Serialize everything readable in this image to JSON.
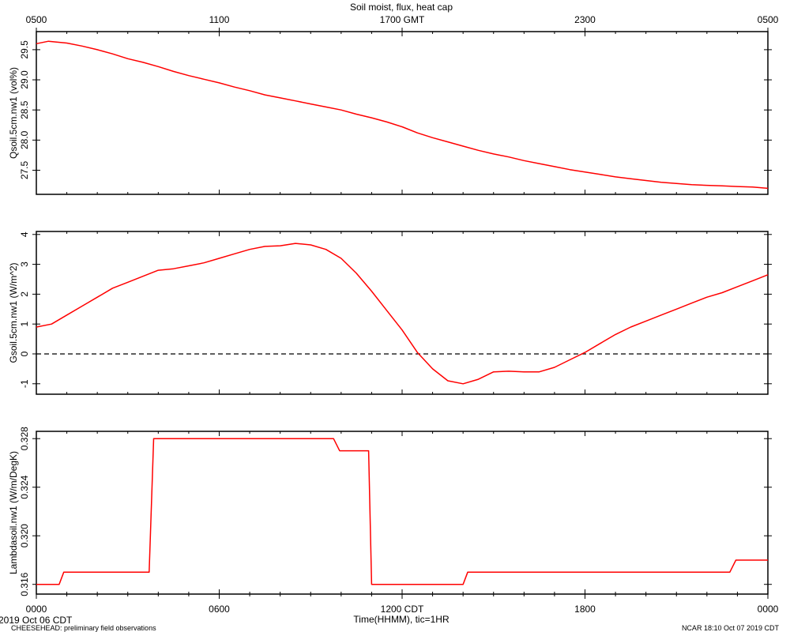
{
  "title": "Soil moist, flux, heat cap",
  "top_axis": {
    "labels": [
      "0500",
      "1100",
      "1700 GMT",
      "2300",
      "0500"
    ]
  },
  "bottom_axis": {
    "labels": [
      "0000",
      "0600",
      "1200 CDT",
      "1800",
      "0000"
    ],
    "title": "Time(HHMM), tic=1HR"
  },
  "footer": {
    "left_date": "2019 Oct 06 CDT",
    "left_note": "CHEESEHEAD: preliminary field observations",
    "right_note": "NCAR 18:10 Oct 07 2019 CDT"
  },
  "colors": {
    "series": "#ff0000",
    "axes": "#000000",
    "zero_line": "#000000"
  },
  "chart_data": [
    {
      "type": "line",
      "ylabel": "Qsoil.5cm.nw1 (vol%)",
      "xlim": [
        0,
        24
      ],
      "ylim": [
        27.1,
        29.8
      ],
      "yticks": [
        27.5,
        28.0,
        28.5,
        29.0,
        29.5
      ],
      "ytick_labels": [
        "27.5",
        "28.0",
        "28.5",
        "29.0",
        "29.5"
      ],
      "series": [
        {
          "x": [
            0,
            0.4,
            1.0,
            1.5,
            2.0,
            2.5,
            3.0,
            3.5,
            4.0,
            4.5,
            5.0,
            5.5,
            6.0,
            6.5,
            7.0,
            7.5,
            8.0,
            8.5,
            9.0,
            9.5,
            10.0,
            10.5,
            11.0,
            11.5,
            12.0,
            12.5,
            13.0,
            13.5,
            14.0,
            14.5,
            15.0,
            15.5,
            16.0,
            16.5,
            17.0,
            17.5,
            18.0,
            18.5,
            19.0,
            19.5,
            20.0,
            20.5,
            21.0,
            21.5,
            22.0,
            22.5,
            23.0,
            23.5,
            24.0
          ],
          "y": [
            29.6,
            29.64,
            29.61,
            29.56,
            29.5,
            29.43,
            29.35,
            29.29,
            29.22,
            29.14,
            29.07,
            29.01,
            28.95,
            28.88,
            28.82,
            28.75,
            28.7,
            28.65,
            28.6,
            28.55,
            28.5,
            28.43,
            28.37,
            28.3,
            28.22,
            28.12,
            28.04,
            27.97,
            27.9,
            27.83,
            27.77,
            27.72,
            27.66,
            27.61,
            27.56,
            27.51,
            27.47,
            27.43,
            27.39,
            27.36,
            27.33,
            27.3,
            27.28,
            27.26,
            27.25,
            27.24,
            27.23,
            27.22,
            27.2
          ]
        }
      ]
    },
    {
      "type": "line",
      "ylabel": "Gsoil.5cm.nw1 (W/m^2)",
      "xlim": [
        0,
        24
      ],
      "ylim": [
        -1.35,
        4.1
      ],
      "yticks": [
        -1,
        0,
        1,
        2,
        3,
        4
      ],
      "ytick_labels": [
        "-1",
        "0",
        "1",
        "2",
        "3",
        "4"
      ],
      "reference_line": 0,
      "series": [
        {
          "x": [
            0,
            0.5,
            1.0,
            1.5,
            2.0,
            2.5,
            3.0,
            3.5,
            4.0,
            4.5,
            5.0,
            5.5,
            6.0,
            6.5,
            7.0,
            7.5,
            8.0,
            8.5,
            9.0,
            9.5,
            10.0,
            10.5,
            11.0,
            11.5,
            12.0,
            12.5,
            13.0,
            13.5,
            14.0,
            14.5,
            15.0,
            15.5,
            16.0,
            16.5,
            17.0,
            17.5,
            18.0,
            18.5,
            19.0,
            19.5,
            20.0,
            20.5,
            21.0,
            21.5,
            22.0,
            22.5,
            23.0,
            23.5,
            24.0
          ],
          "y": [
            0.9,
            1.0,
            1.3,
            1.6,
            1.9,
            2.2,
            2.4,
            2.6,
            2.8,
            2.85,
            2.95,
            3.05,
            3.2,
            3.35,
            3.5,
            3.6,
            3.62,
            3.7,
            3.65,
            3.5,
            3.2,
            2.7,
            2.1,
            1.45,
            0.8,
            0.05,
            -0.5,
            -0.9,
            -1.0,
            -0.85,
            -0.6,
            -0.58,
            -0.6,
            -0.6,
            -0.45,
            -0.2,
            0.05,
            0.35,
            0.65,
            0.9,
            1.1,
            1.3,
            1.5,
            1.7,
            1.9,
            2.05,
            2.25,
            2.45,
            2.65
          ]
        }
      ]
    },
    {
      "type": "line",
      "ylabel": "Lambdasoil.nw1 (W/m/DegK)",
      "xlim": [
        0,
        24
      ],
      "ylim": [
        0.3152,
        0.3286
      ],
      "yticks": [
        0.316,
        0.32,
        0.324,
        0.328
      ],
      "ytick_labels": [
        "0.316",
        "0.320",
        "0.324",
        "0.328"
      ],
      "series": [
        {
          "x": [
            0,
            0.75,
            0.9,
            3.7,
            3.85,
            9.75,
            9.95,
            10.9,
            11.0,
            14.0,
            14.15,
            22.75,
            22.95,
            24.0
          ],
          "y": [
            0.316,
            0.316,
            0.317,
            0.317,
            0.328,
            0.328,
            0.327,
            0.327,
            0.316,
            0.316,
            0.317,
            0.317,
            0.318,
            0.318
          ]
        }
      ]
    }
  ]
}
